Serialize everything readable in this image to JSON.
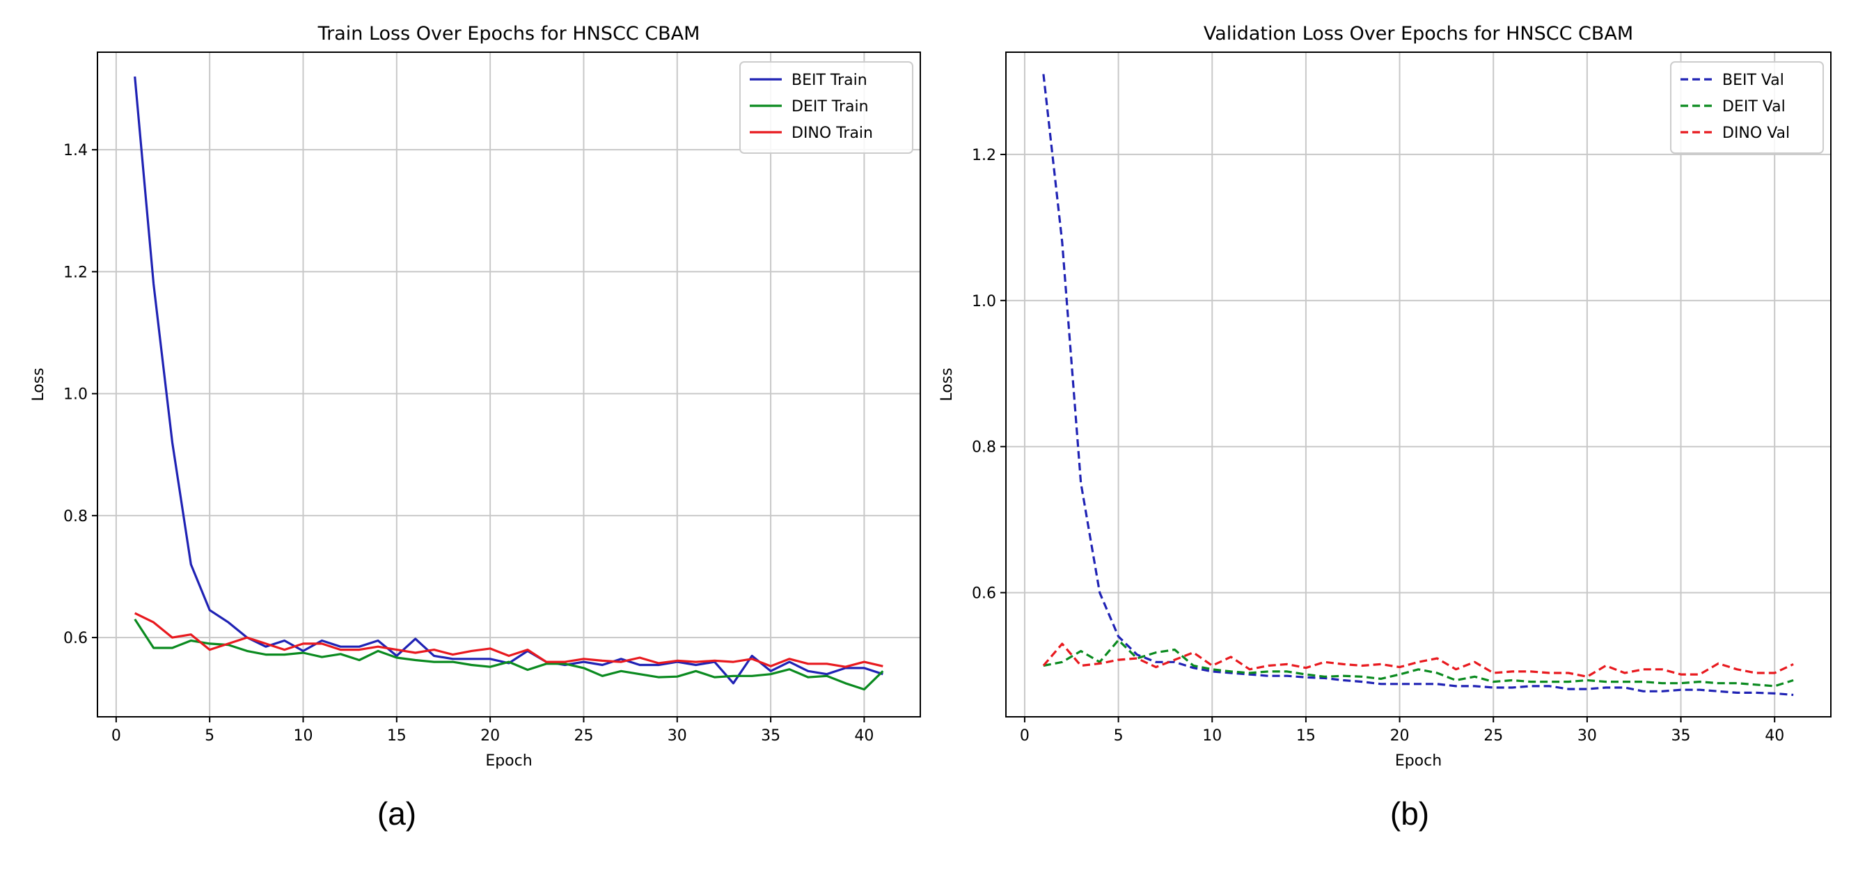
{
  "chart_data": [
    {
      "type": "line",
      "title": "Train Loss Over Epochs for HNSCC CBAM",
      "xlabel": "Epoch",
      "ylabel": "Loss",
      "xlim": [
        -1,
        43
      ],
      "ylim": [
        0.47,
        1.56
      ],
      "xticks": [
        0,
        5,
        10,
        15,
        20,
        25,
        30,
        35,
        40
      ],
      "yticks": [
        0.6,
        0.8,
        1.0,
        1.2,
        1.4
      ],
      "ytick_labels": [
        "0.6",
        "0.8",
        "1.0",
        "1.2",
        "1.4"
      ],
      "grid": true,
      "legend_position": "top-right",
      "caption": "(a)",
      "x": [
        1,
        2,
        3,
        4,
        5,
        6,
        7,
        8,
        9,
        10,
        11,
        12,
        13,
        14,
        15,
        16,
        17,
        18,
        19,
        20,
        21,
        22,
        23,
        24,
        25,
        26,
        27,
        28,
        29,
        30,
        31,
        32,
        33,
        34,
        35,
        36,
        37,
        38,
        39,
        40,
        41
      ],
      "series": [
        {
          "name": "BEIT Train",
          "color": "#1f22b4",
          "dash": "solid",
          "values": [
            1.52,
            1.18,
            0.92,
            0.72,
            0.645,
            0.625,
            0.6,
            0.585,
            0.595,
            0.578,
            0.595,
            0.585,
            0.585,
            0.595,
            0.57,
            0.598,
            0.57,
            0.565,
            0.565,
            0.565,
            0.558,
            0.578,
            0.56,
            0.555,
            0.56,
            0.555,
            0.565,
            0.555,
            0.555,
            0.56,
            0.555,
            0.56,
            0.525,
            0.57,
            0.545,
            0.56,
            0.545,
            0.54,
            0.55,
            0.55,
            0.54
          ]
        },
        {
          "name": "DEIT Train",
          "color": "#0a8a1f",
          "dash": "solid",
          "values": [
            0.63,
            0.583,
            0.583,
            0.595,
            0.59,
            0.588,
            0.578,
            0.572,
            0.572,
            0.575,
            0.568,
            0.573,
            0.563,
            0.578,
            0.567,
            0.563,
            0.56,
            0.56,
            0.555,
            0.552,
            0.56,
            0.547,
            0.557,
            0.557,
            0.55,
            0.537,
            0.545,
            0.54,
            0.535,
            0.536,
            0.545,
            0.535,
            0.537,
            0.537,
            0.54,
            0.548,
            0.535,
            0.537,
            0.525,
            0.515,
            0.545
          ]
        },
        {
          "name": "DINO Train",
          "color": "#e8191e",
          "dash": "solid",
          "values": [
            0.64,
            0.625,
            0.6,
            0.605,
            0.58,
            0.59,
            0.6,
            0.59,
            0.58,
            0.59,
            0.59,
            0.58,
            0.58,
            0.585,
            0.58,
            0.575,
            0.58,
            0.572,
            0.578,
            0.582,
            0.57,
            0.58,
            0.56,
            0.56,
            0.565,
            0.562,
            0.56,
            0.567,
            0.558,
            0.562,
            0.56,
            0.562,
            0.56,
            0.565,
            0.553,
            0.565,
            0.557,
            0.557,
            0.552,
            0.56,
            0.553
          ]
        }
      ]
    },
    {
      "type": "line",
      "title": "Validation Loss Over Epochs for HNSCC CBAM",
      "xlabel": "Epoch",
      "ylabel": "Loss",
      "xlim": [
        -1,
        43
      ],
      "ylim": [
        0.43,
        1.34
      ],
      "xticks": [
        0,
        5,
        10,
        15,
        20,
        25,
        30,
        35,
        40
      ],
      "yticks": [
        0.6,
        0.8,
        1.0,
        1.2
      ],
      "ytick_labels": [
        "0.6",
        "0.8",
        "1.0",
        "1.2"
      ],
      "grid": true,
      "legend_position": "top-right",
      "caption": "(b)",
      "x": [
        1,
        2,
        3,
        4,
        5,
        6,
        7,
        8,
        9,
        10,
        11,
        12,
        13,
        14,
        15,
        16,
        17,
        18,
        19,
        20,
        21,
        22,
        23,
        24,
        25,
        26,
        27,
        28,
        29,
        30,
        31,
        32,
        33,
        34,
        35,
        36,
        37,
        38,
        39,
        40,
        41
      ],
      "series": [
        {
          "name": "BEIT Val",
          "color": "#1f22b4",
          "dash": "dashed",
          "values": [
            1.31,
            1.08,
            0.75,
            0.6,
            0.54,
            0.515,
            0.505,
            0.505,
            0.497,
            0.492,
            0.49,
            0.488,
            0.486,
            0.486,
            0.484,
            0.483,
            0.48,
            0.478,
            0.475,
            0.475,
            0.475,
            0.475,
            0.472,
            0.472,
            0.47,
            0.47,
            0.472,
            0.472,
            0.468,
            0.468,
            0.47,
            0.47,
            0.465,
            0.465,
            0.467,
            0.467,
            0.465,
            0.463,
            0.463,
            0.462,
            0.46
          ]
        },
        {
          "name": "DEIT Val",
          "color": "#0a8a1f",
          "dash": "dashed",
          "values": [
            0.5,
            0.505,
            0.52,
            0.505,
            0.535,
            0.51,
            0.518,
            0.522,
            0.5,
            0.495,
            0.492,
            0.49,
            0.492,
            0.492,
            0.488,
            0.485,
            0.486,
            0.485,
            0.482,
            0.488,
            0.495,
            0.49,
            0.48,
            0.485,
            0.478,
            0.48,
            0.478,
            0.478,
            0.478,
            0.48,
            0.478,
            0.478,
            0.478,
            0.476,
            0.476,
            0.478,
            0.476,
            0.476,
            0.474,
            0.472,
            0.48
          ]
        },
        {
          "name": "DINO Val",
          "color": "#e8191e",
          "dash": "dashed",
          "values": [
            0.5,
            0.53,
            0.5,
            0.503,
            0.508,
            0.51,
            0.498,
            0.508,
            0.518,
            0.5,
            0.512,
            0.495,
            0.5,
            0.502,
            0.497,
            0.505,
            0.502,
            0.5,
            0.502,
            0.498,
            0.505,
            0.51,
            0.495,
            0.505,
            0.49,
            0.492,
            0.492,
            0.49,
            0.49,
            0.485,
            0.5,
            0.49,
            0.495,
            0.495,
            0.488,
            0.488,
            0.503,
            0.495,
            0.49,
            0.49,
            0.502
          ]
        }
      ]
    }
  ]
}
